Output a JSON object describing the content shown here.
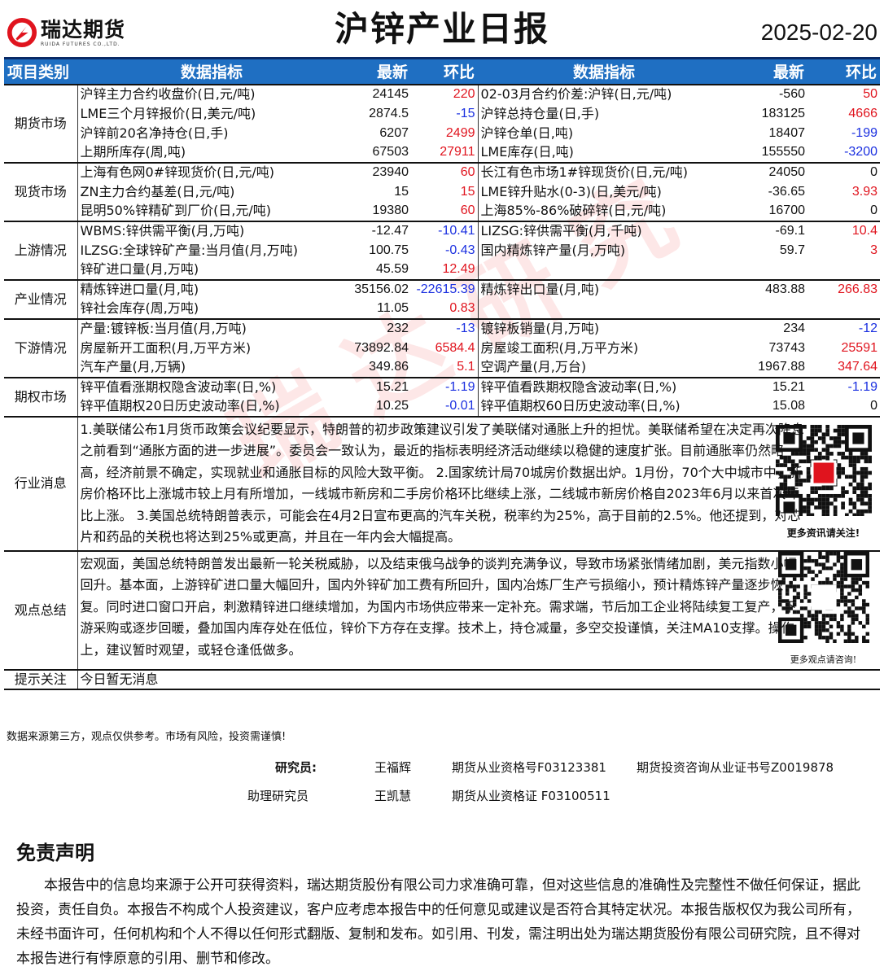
{
  "header": {
    "logo_cn": "瑞达期货",
    "logo_en": "RUIDA FUTURES CO.,LTD.",
    "title": "沪锌产业日报",
    "date": "2025-02-20",
    "watermark": "瑞达研究"
  },
  "columns": {
    "category": "项目类别",
    "indicator": "数据指标",
    "latest": "最新",
    "change": "环比"
  },
  "colors": {
    "header_bg": "#1f6fc2",
    "up": "#e0141e",
    "down": "#1a2fe0"
  },
  "groups": [
    {
      "category": "期货市场",
      "rows": [
        {
          "l": {
            "name": "沪锌主力合约收盘价(日,元/吨)",
            "latest": "24145",
            "change": "220",
            "dir": "up"
          },
          "r": {
            "name": "02-03月合约价差:沪锌(日,元/吨)",
            "latest": "-560",
            "change": "50",
            "dir": "up"
          }
        },
        {
          "l": {
            "name": "LME三个月锌报价(日,美元/吨)",
            "latest": "2874.5",
            "change": "-15",
            "dir": "down"
          },
          "r": {
            "name": "沪锌总持仓量(日,手)",
            "latest": "183125",
            "change": "4666",
            "dir": "up"
          }
        },
        {
          "l": {
            "name": "沪锌前20名净持仓(日,手)",
            "latest": "6207",
            "change": "2499",
            "dir": "up"
          },
          "r": {
            "name": "沪锌仓单(日,吨)",
            "latest": "18407",
            "change": "-199",
            "dir": "down"
          }
        },
        {
          "l": {
            "name": "上期所库存(周,吨)",
            "latest": "67503",
            "change": "27911",
            "dir": "up"
          },
          "r": {
            "name": "LME库存(日,吨)",
            "latest": "155550",
            "change": "-3200",
            "dir": "down"
          }
        }
      ]
    },
    {
      "category": "现货市场",
      "rows": [
        {
          "l": {
            "name": "上海有色网0#锌现货价(日,元/吨)",
            "latest": "23940",
            "change": "60",
            "dir": "up"
          },
          "r": {
            "name": "长江有色市场1#锌现货价(日,元/吨)",
            "latest": "24050",
            "change": "0",
            "dir": "flat"
          }
        },
        {
          "l": {
            "name": "ZN主力合约基差(日,元/吨)",
            "latest": "15",
            "change": "15",
            "dir": "up"
          },
          "r": {
            "name": "LME锌升贴水(0-3)(日,美元/吨)",
            "latest": "-36.65",
            "change": "3.93",
            "dir": "up"
          }
        },
        {
          "l": {
            "name": "昆明50%锌精矿到厂价(日,元/吨)",
            "latest": "19380",
            "change": "60",
            "dir": "up"
          },
          "r": {
            "name": "上海85%-86%破碎锌(日,元/吨)",
            "latest": "16700",
            "change": "0",
            "dir": "flat"
          }
        }
      ]
    },
    {
      "category": "上游情况",
      "rows": [
        {
          "l": {
            "name": "WBMS:锌供需平衡(月,万吨)",
            "latest": "-12.47",
            "change": "-10.41",
            "dir": "down"
          },
          "r": {
            "name": "LIZSG:锌供需平衡(月,千吨)",
            "latest": "-69.1",
            "change": "10.4",
            "dir": "up"
          }
        },
        {
          "l": {
            "name": "ILZSG:全球锌矿产量:当月值(月,万吨)",
            "latest": "100.75",
            "change": "-0.43",
            "dir": "down"
          },
          "r": {
            "name": "国内精炼锌产量(月,万吨)",
            "latest": "59.7",
            "change": "3",
            "dir": "up"
          }
        },
        {
          "l": {
            "name": "锌矿进口量(月,万吨)",
            "latest": "45.59",
            "change": "12.49",
            "dir": "up"
          },
          "r": {
            "name": "",
            "latest": "",
            "change": "",
            "dir": "flat"
          }
        }
      ]
    },
    {
      "category": "产业情况",
      "rows": [
        {
          "l": {
            "name": "精炼锌进口量(月,吨)",
            "latest": "35156.02",
            "change": "-22615.39",
            "dir": "down"
          },
          "r": {
            "name": "精炼锌出口量(月,吨)",
            "latest": "483.88",
            "change": "266.83",
            "dir": "up"
          }
        },
        {
          "l": {
            "name": "锌社会库存(周,万吨)",
            "latest": "11.05",
            "change": "0.83",
            "dir": "up"
          },
          "r": {
            "name": "",
            "latest": "",
            "change": "",
            "dir": "flat"
          }
        }
      ]
    },
    {
      "category": "下游情况",
      "rows": [
        {
          "l": {
            "name": "产量:镀锌板:当月值(月,万吨)",
            "latest": "232",
            "change": "-13",
            "dir": "down"
          },
          "r": {
            "name": "镀锌板销量(月,万吨)",
            "latest": "234",
            "change": "-12",
            "dir": "down"
          }
        },
        {
          "l": {
            "name": "房屋新开工面积(月,万平方米)",
            "latest": "73892.84",
            "change": "6584.4",
            "dir": "up"
          },
          "r": {
            "name": "房屋竣工面积(月,万平方米)",
            "latest": "73743",
            "change": "25591",
            "dir": "up"
          }
        },
        {
          "l": {
            "name": "汽车产量(月,万辆)",
            "latest": "349.86",
            "change": "5.1",
            "dir": "up"
          },
          "r": {
            "name": "空调产量(月,万台)",
            "latest": "1967.88",
            "change": "347.64",
            "dir": "up"
          }
        }
      ]
    },
    {
      "category": "期权市场",
      "rows": [
        {
          "l": {
            "name": "锌平值看涨期权隐含波动率(日,%)",
            "latest": "15.21",
            "change": "-1.19",
            "dir": "down"
          },
          "r": {
            "name": "锌平值看跌期权隐含波动率(日,%)",
            "latest": "15.21",
            "change": "-1.19",
            "dir": "down"
          }
        },
        {
          "l": {
            "name": "锌平值期权20日历史波动率(日,%)",
            "latest": "10.25",
            "change": "-0.01",
            "dir": "down"
          },
          "r": {
            "name": "锌平值期权60日历史波动率(日,%)",
            "latest": "15.08",
            "change": "0",
            "dir": "flat"
          }
        }
      ]
    }
  ],
  "news": {
    "category": "行业消息",
    "text": "1.美联储公布1月货币政策会议纪要显示，特朗普的初步政策建议引发了美联储对通胀上升的担忧。美联储希望在决定再次降息之前看到“通胀方面的进一步进展”。委员会一致认为，最近的指标表明经济活动继续以稳健的速度扩张。目前通胀率仍然略高，经济前景不确定，实现就业和通胀目标的风险大致平衡。 2.国家统计局70城房价数据出炉。1月份，70个大中城市中，新房价格环比上涨城市较上月有所增加，一线城市新房和二手房价格环比继续上涨，二线城市新房价格自2023年6月以来首次环比上涨。 3.美国总统特朗普表示，可能会在4月2日宣布更高的汽车关税，税率约为25%，高于目前的2.5%。他还提到，对芯片和药品的关税也将达到25%或更高，并且在一年内会大幅提高。",
    "qr_caption": "更多资讯请关注!"
  },
  "view": {
    "category": "观点总结",
    "text": "宏观面，美国总统特朗普发出最新一轮关税威胁，以及结束俄乌战争的谈判充满争议，导致市场紧张情绪加剧，美元指数小幅回升。基本面，上游锌矿进口量大幅回升，国内外锌矿加工费有所回升，国内冶炼厂生产亏损缩小，预计精炼锌产量逐步恢复。同时进口窗口开启，刺激精锌进口继续增加，为国内市场供应带来一定补充。需求端，节后加工企业将陆续复工复产，下游采购或逐步回暖，叠加国内库存处在低位，锌价下方存在支撑。技术上，持仓减量，多空交投谨慎，关注MA10支撑。操作上，建议暂时观望，或轻仓逢低做多。",
    "qr_caption": "更多观点请咨询!"
  },
  "tips": {
    "category": "提示关注",
    "text": "今日暂无消息"
  },
  "footer": {
    "source": "数据来源第三方，观点仅供参考。市场有风险，投资需谨慎!",
    "researcher_label": "研究员:",
    "researcher_name": "王福辉",
    "researcher_cert1": "期货从业资格号F03123381",
    "researcher_cert2": "期货投资咨询从业证书号Z0019878",
    "assistant_label": "助理研究员",
    "assistant_name": "王凯慧",
    "assistant_cert": "期货从业资格证 F03100511",
    "disclaimer_title": "免责声明",
    "disclaimer": "本报告中的信息均来源于公开可获得资料，瑞达期货股份有限公司力求准确可靠，但对这些信息的准确性及完整性不做任何保证，据此投资，责任自负。本报告不构成个人投资建议，客户应考虑本报告中的任何意见或建议是否符合其特定状况。本报告版权仅为我公司所有，未经书面许可，任何机构和个人不得以任何形式翻版、复制和发布。如引用、刊发，需注明出处为瑞达期货股份有限公司研究院，且不得对本报告进行有悖原意的引用、删节和修改。"
  }
}
